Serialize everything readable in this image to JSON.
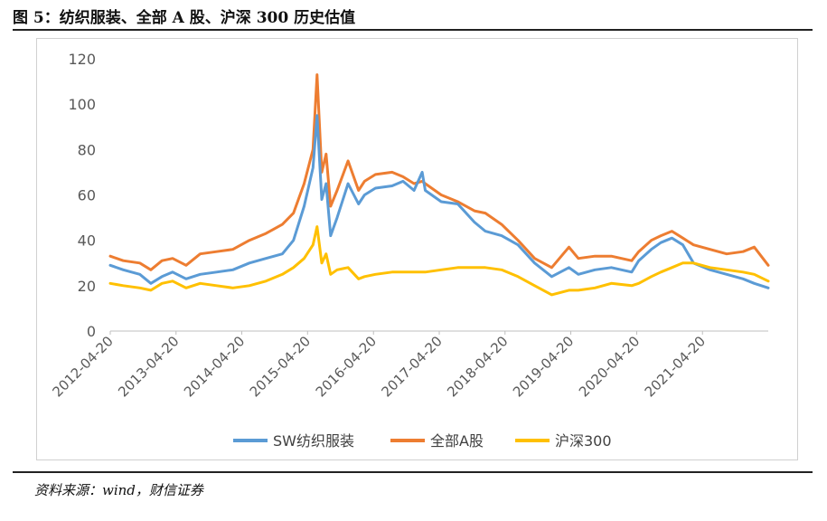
{
  "figure": {
    "title": "图 5：纺织服装、全部 A 股、沪深 300 历史估值",
    "source": "资料来源：wind，财信证券"
  },
  "chart_data": {
    "type": "line",
    "title": "",
    "xlabel": "",
    "ylabel": "",
    "ylim": [
      0,
      120
    ],
    "yticks": [
      0,
      20,
      40,
      60,
      80,
      100,
      120
    ],
    "xlim": [
      "2012-04-20",
      "2022-04-20"
    ],
    "xticks": [
      "2012-04-20",
      "2013-04-20",
      "2014-04-20",
      "2015-04-20",
      "2016-04-20",
      "2017-04-20",
      "2018-04-20",
      "2019-04-20",
      "2020-04-20",
      "2021-04-20"
    ],
    "grid": false,
    "legend_position": "bottom",
    "colors": {
      "sw": "#5B9BD5",
      "all_a": "#ED7D31",
      "hs300": "#FFC000"
    },
    "series": [
      {
        "name": "SW纺织服装",
        "color": "#5B9BD5",
        "points": [
          [
            "2012-04-20",
            29
          ],
          [
            "2012-07-01",
            27
          ],
          [
            "2012-10-01",
            25
          ],
          [
            "2012-12-01",
            21
          ],
          [
            "2013-02-01",
            24
          ],
          [
            "2013-04-01",
            26
          ],
          [
            "2013-06-15",
            23
          ],
          [
            "2013-09-01",
            25
          ],
          [
            "2013-12-01",
            26
          ],
          [
            "2014-03-01",
            27
          ],
          [
            "2014-06-01",
            30
          ],
          [
            "2014-09-01",
            32
          ],
          [
            "2014-12-01",
            34
          ],
          [
            "2015-02-01",
            40
          ],
          [
            "2015-04-01",
            55
          ],
          [
            "2015-05-20",
            72
          ],
          [
            "2015-06-12",
            95
          ],
          [
            "2015-07-08",
            58
          ],
          [
            "2015-08-01",
            65
          ],
          [
            "2015-08-26",
            42
          ],
          [
            "2015-10-01",
            50
          ],
          [
            "2015-12-01",
            65
          ],
          [
            "2016-01-28",
            56
          ],
          [
            "2016-03-01",
            60
          ],
          [
            "2016-05-01",
            63
          ],
          [
            "2016-08-01",
            64
          ],
          [
            "2016-10-01",
            66
          ],
          [
            "2016-12-01",
            62
          ],
          [
            "2017-01-15",
            70
          ],
          [
            "2017-02-01",
            62
          ],
          [
            "2017-05-01",
            57
          ],
          [
            "2017-08-01",
            56
          ],
          [
            "2017-11-01",
            48
          ],
          [
            "2018-01-01",
            44
          ],
          [
            "2018-04-01",
            42
          ],
          [
            "2018-07-01",
            38
          ],
          [
            "2018-10-01",
            30
          ],
          [
            "2019-01-04",
            24
          ],
          [
            "2019-04-10",
            28
          ],
          [
            "2019-06-01",
            25
          ],
          [
            "2019-09-01",
            27
          ],
          [
            "2019-12-01",
            28
          ],
          [
            "2020-03-23",
            26
          ],
          [
            "2020-05-01",
            31
          ],
          [
            "2020-07-10",
            36
          ],
          [
            "2020-09-01",
            39
          ],
          [
            "2020-11-01",
            41
          ],
          [
            "2021-01-01",
            38
          ],
          [
            "2021-03-01",
            30
          ],
          [
            "2021-06-01",
            27
          ],
          [
            "2021-09-01",
            25
          ],
          [
            "2021-12-01",
            23
          ],
          [
            "2022-02-01",
            21
          ],
          [
            "2022-04-20",
            19
          ]
        ]
      },
      {
        "name": "全部A股",
        "color": "#ED7D31",
        "points": [
          [
            "2012-04-20",
            33
          ],
          [
            "2012-07-01",
            31
          ],
          [
            "2012-10-01",
            30
          ],
          [
            "2012-12-01",
            27
          ],
          [
            "2013-02-01",
            31
          ],
          [
            "2013-04-01",
            32
          ],
          [
            "2013-06-15",
            29
          ],
          [
            "2013-09-01",
            34
          ],
          [
            "2013-12-01",
            35
          ],
          [
            "2014-03-01",
            36
          ],
          [
            "2014-06-01",
            40
          ],
          [
            "2014-09-01",
            43
          ],
          [
            "2014-12-01",
            47
          ],
          [
            "2015-02-01",
            52
          ],
          [
            "2015-04-01",
            65
          ],
          [
            "2015-05-20",
            80
          ],
          [
            "2015-06-12",
            113
          ],
          [
            "2015-07-08",
            70
          ],
          [
            "2015-08-01",
            78
          ],
          [
            "2015-08-26",
            55
          ],
          [
            "2015-10-01",
            62
          ],
          [
            "2015-12-01",
            75
          ],
          [
            "2016-01-28",
            62
          ],
          [
            "2016-03-01",
            66
          ],
          [
            "2016-05-01",
            69
          ],
          [
            "2016-08-01",
            70
          ],
          [
            "2016-10-01",
            68
          ],
          [
            "2016-12-01",
            65
          ],
          [
            "2017-01-15",
            66
          ],
          [
            "2017-02-01",
            65
          ],
          [
            "2017-05-01",
            60
          ],
          [
            "2017-08-01",
            57
          ],
          [
            "2017-11-01",
            53
          ],
          [
            "2018-01-01",
            52
          ],
          [
            "2018-04-01",
            47
          ],
          [
            "2018-07-01",
            40
          ],
          [
            "2018-10-01",
            32
          ],
          [
            "2019-01-04",
            28
          ],
          [
            "2019-04-10",
            37
          ],
          [
            "2019-06-01",
            32
          ],
          [
            "2019-09-01",
            33
          ],
          [
            "2019-12-01",
            33
          ],
          [
            "2020-03-23",
            31
          ],
          [
            "2020-05-01",
            35
          ],
          [
            "2020-07-10",
            40
          ],
          [
            "2020-09-01",
            42
          ],
          [
            "2020-11-01",
            44
          ],
          [
            "2021-01-01",
            41
          ],
          [
            "2021-03-01",
            38
          ],
          [
            "2021-06-01",
            36
          ],
          [
            "2021-09-01",
            34
          ],
          [
            "2021-12-01",
            35
          ],
          [
            "2022-02-01",
            37
          ],
          [
            "2022-04-20",
            29
          ]
        ]
      },
      {
        "name": "沪深300",
        "color": "#FFC000",
        "points": [
          [
            "2012-04-20",
            21
          ],
          [
            "2012-07-01",
            20
          ],
          [
            "2012-10-01",
            19
          ],
          [
            "2012-12-01",
            18
          ],
          [
            "2013-02-01",
            21
          ],
          [
            "2013-04-01",
            22
          ],
          [
            "2013-06-15",
            19
          ],
          [
            "2013-09-01",
            21
          ],
          [
            "2013-12-01",
            20
          ],
          [
            "2014-03-01",
            19
          ],
          [
            "2014-06-01",
            20
          ],
          [
            "2014-09-01",
            22
          ],
          [
            "2014-12-01",
            25
          ],
          [
            "2015-02-01",
            28
          ],
          [
            "2015-04-01",
            32
          ],
          [
            "2015-05-20",
            38
          ],
          [
            "2015-06-12",
            46
          ],
          [
            "2015-07-08",
            30
          ],
          [
            "2015-08-01",
            34
          ],
          [
            "2015-08-26",
            25
          ],
          [
            "2015-10-01",
            27
          ],
          [
            "2015-12-01",
            28
          ],
          [
            "2016-01-28",
            23
          ],
          [
            "2016-03-01",
            24
          ],
          [
            "2016-05-01",
            25
          ],
          [
            "2016-08-01",
            26
          ],
          [
            "2016-10-01",
            26
          ],
          [
            "2016-12-01",
            26
          ],
          [
            "2017-01-15",
            26
          ],
          [
            "2017-02-01",
            26
          ],
          [
            "2017-05-01",
            27
          ],
          [
            "2017-08-01",
            28
          ],
          [
            "2017-11-01",
            28
          ],
          [
            "2018-01-01",
            28
          ],
          [
            "2018-04-01",
            27
          ],
          [
            "2018-07-01",
            24
          ],
          [
            "2018-10-01",
            20
          ],
          [
            "2019-01-04",
            16
          ],
          [
            "2019-04-10",
            18
          ],
          [
            "2019-06-01",
            18
          ],
          [
            "2019-09-01",
            19
          ],
          [
            "2019-12-01",
            21
          ],
          [
            "2020-03-23",
            20
          ],
          [
            "2020-05-01",
            21
          ],
          [
            "2020-07-10",
            24
          ],
          [
            "2020-09-01",
            26
          ],
          [
            "2020-11-01",
            28
          ],
          [
            "2021-01-01",
            30
          ],
          [
            "2021-03-01",
            30
          ],
          [
            "2021-06-01",
            28
          ],
          [
            "2021-09-01",
            27
          ],
          [
            "2021-12-01",
            26
          ],
          [
            "2022-02-01",
            25
          ],
          [
            "2022-04-20",
            22
          ]
        ]
      }
    ]
  }
}
